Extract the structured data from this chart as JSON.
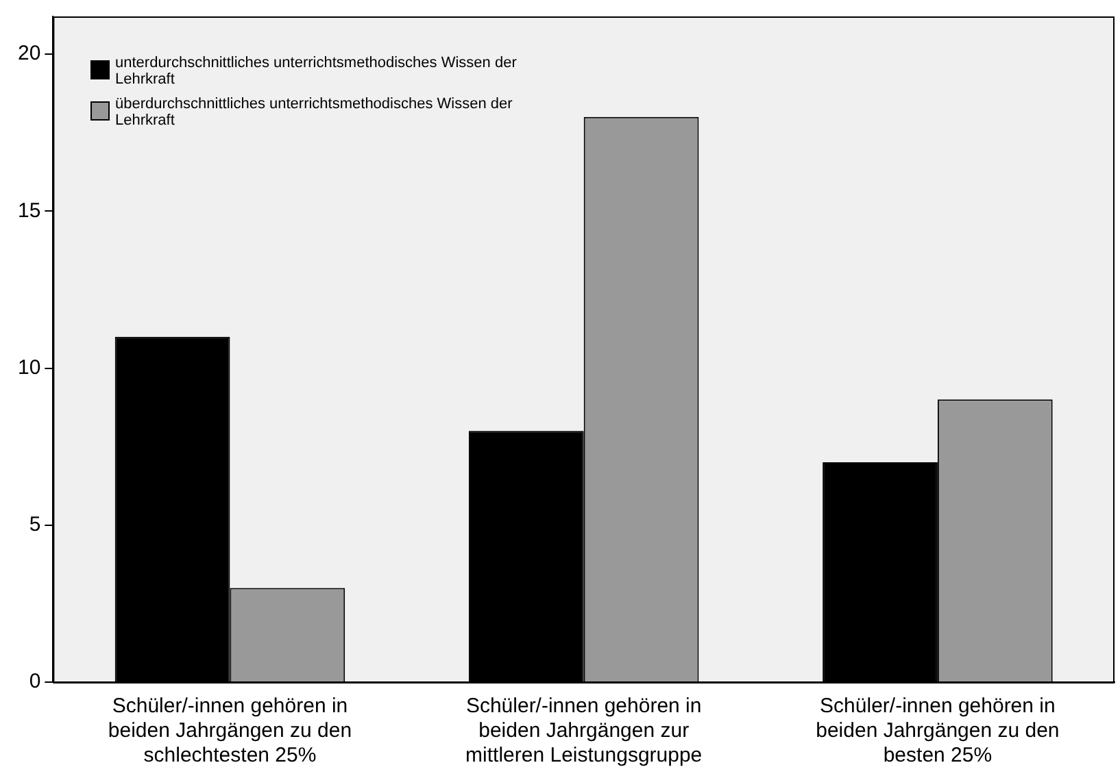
{
  "chart_data": {
    "type": "bar",
    "categories": [
      "Schüler/-innen gehören in beiden Jahrgängen zu den schlechtesten 25%",
      "Schüler/-innen gehören in beiden Jahrgängen zur mittleren Leistungsgruppe",
      "Schüler/-innen gehören in beiden Jahrgängen zu den besten 25%"
    ],
    "series": [
      {
        "name": "unterdurchschnittliches unterrichtsmethodisches Wissen der Lehrkraft",
        "color": "#000000",
        "values": [
          11,
          8,
          7
        ]
      },
      {
        "name": "überdurchschnittliches unterrichtsmethodisches Wissen der Lehrkraft",
        "color": "#999999",
        "values": [
          3,
          18,
          9
        ]
      }
    ],
    "ylim": [
      0,
      21.2
    ],
    "yticks": [
      0,
      5,
      10,
      15,
      20
    ],
    "grid": false,
    "legend": "top left"
  }
}
